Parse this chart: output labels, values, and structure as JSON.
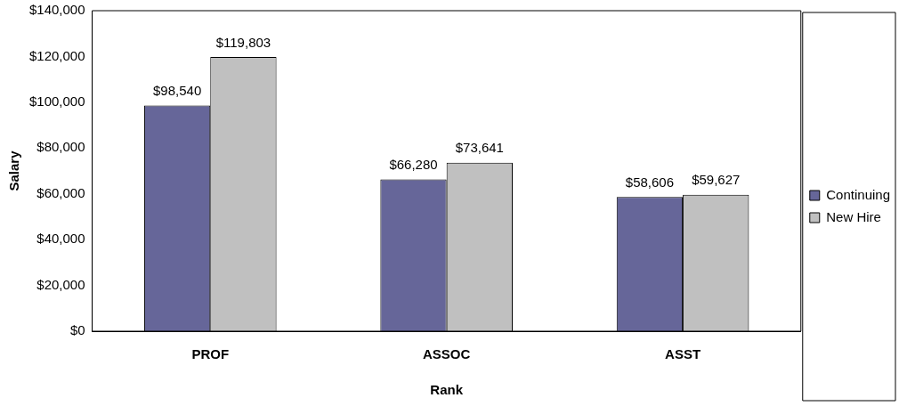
{
  "chart_data": {
    "type": "bar",
    "xlabel": "Rank",
    "ylabel": "Salary",
    "categories": [
      "PROF",
      "ASSOC",
      "ASST"
    ],
    "series": [
      {
        "name": "Continuing",
        "color": "#666699",
        "values": [
          98540,
          66280,
          58606
        ],
        "value_labels": [
          "$98,540",
          "$66,280",
          "$58,606"
        ]
      },
      {
        "name": "New Hire",
        "color": "#c0c0c0",
        "values": [
          119803,
          73641,
          59627
        ],
        "value_labels": [
          "$119,803",
          "$73,641",
          "$59,627"
        ]
      }
    ],
    "ylim": [
      0,
      140000
    ],
    "yticks": [
      {
        "value": 0,
        "label": "$0"
      },
      {
        "value": 20000,
        "label": "$20,000"
      },
      {
        "value": 40000,
        "label": "$40,000"
      },
      {
        "value": 60000,
        "label": "$60,000"
      },
      {
        "value": 80000,
        "label": "$80,000"
      },
      {
        "value": 100000,
        "label": "$100,000"
      },
      {
        "value": 120000,
        "label": "$120,000"
      },
      {
        "value": 140000,
        "label": "$140,000"
      }
    ],
    "grid": false,
    "legend": "right"
  }
}
